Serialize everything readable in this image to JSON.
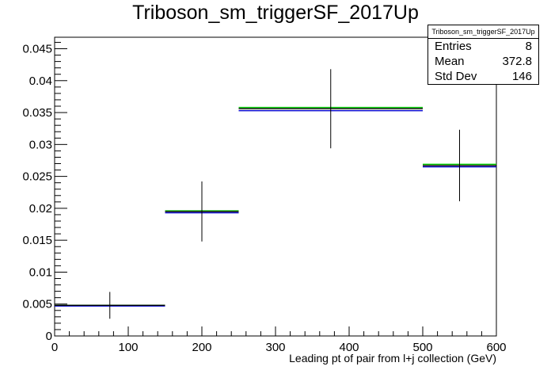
{
  "chart_data": {
    "type": "histogram",
    "title": "Triboson_sm_triggerSF_2017Up",
    "xlabel": "Leading pt of pair from l+j collection (GeV)",
    "ylabel": "",
    "xlim": [
      0,
      600
    ],
    "ylim": [
      0,
      0.0468
    ],
    "x_ticks": [
      0,
      100,
      200,
      300,
      400,
      500,
      600
    ],
    "x_tick_labels": [
      "0",
      "100",
      "200",
      "300",
      "400",
      "500",
      "600"
    ],
    "y_ticks": [
      0,
      0.005,
      0.01,
      0.015,
      0.02,
      0.025,
      0.03,
      0.035,
      0.04,
      0.045
    ],
    "y_tick_labels": [
      "0",
      "0.005",
      "0.01",
      "0.015",
      "0.02",
      "0.025",
      "0.03",
      "0.035",
      "0.04",
      "0.045"
    ],
    "bins": [
      {
        "xlow": 0,
        "xhigh": 150,
        "xcenter": 75,
        "value": 0.0048,
        "err": 0.0021
      },
      {
        "xlow": 150,
        "xhigh": 250,
        "xcenter": 200,
        "value": 0.0195,
        "err": 0.0047
      },
      {
        "xlow": 250,
        "xhigh": 500,
        "xcenter": 375,
        "value": 0.0356,
        "err": 0.0062
      },
      {
        "xlow": 500,
        "xhigh": 600,
        "xcenter": 550,
        "value": 0.0267,
        "err": 0.0056
      }
    ],
    "series": [
      {
        "values": [
          0.0048,
          0.0196,
          0.0358,
          0.0269
        ],
        "color": "#00cc00"
      },
      {
        "values": [
          0.0047,
          0.0193,
          0.0353,
          0.0265
        ],
        "color": "#0000cc"
      },
      {
        "values": [
          0.0048,
          0.0195,
          0.0356,
          0.0267
        ],
        "color": "#000000"
      }
    ],
    "grid": false,
    "stats": {
      "title": "Triboson_sm_triggerSF_2017Up",
      "rows": [
        {
          "label": "Entries",
          "value": "8"
        },
        {
          "label": "Mean",
          "value": "372.8"
        },
        {
          "label": "Std Dev",
          "value": "146"
        }
      ]
    }
  }
}
